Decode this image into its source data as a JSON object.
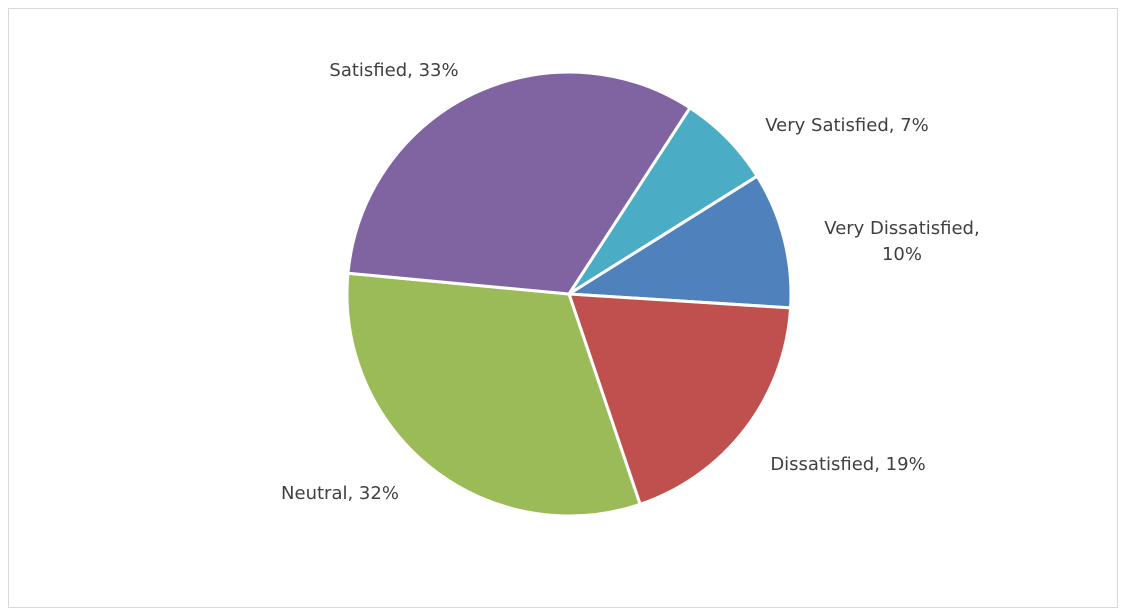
{
  "chart_data": {
    "type": "pie",
    "title": "",
    "legend": "none",
    "start_angle_deg": 33,
    "slices": [
      {
        "category": "Very Satisfied",
        "value": 7,
        "color": "#4BACC6",
        "label_lines": [
          "Very Satisfied, 7%"
        ]
      },
      {
        "category": "Very Dissatisfied",
        "value": 10,
        "color": "#4F81BD",
        "label_lines": [
          "Very Dissatisfied,",
          "10%"
        ]
      },
      {
        "category": "Dissatisfied",
        "value": 19,
        "color": "#C0504D",
        "label_lines": [
          "Dissatisfied, 19%"
        ]
      },
      {
        "category": "Neutral",
        "value": 32,
        "color": "#9BBB59",
        "label_lines": [
          "Neutral, 32%"
        ]
      },
      {
        "category": "Satisfied",
        "value": 33,
        "color": "#8064A2",
        "label_lines": [
          "Satisfied, 33%"
        ]
      }
    ]
  }
}
